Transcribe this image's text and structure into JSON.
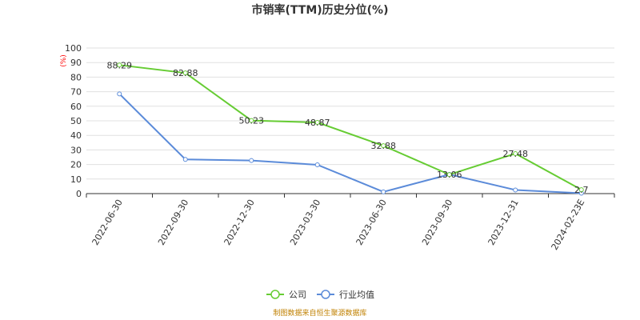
{
  "chart_data": {
    "type": "line",
    "title": "市销率(TTM)历史分位(%)",
    "ylabel": "(%)",
    "categories": [
      "2022-06-30",
      "2022-09-30",
      "2022-12-30",
      "2023-03-30",
      "2023-06-30",
      "2023-09-30",
      "2023-12-31",
      "2024-02-23E"
    ],
    "ylim": [
      0,
      100
    ],
    "yticks": [
      0,
      10,
      20,
      30,
      40,
      50,
      60,
      70,
      80,
      90,
      100
    ],
    "grid": true,
    "legend_position": "bottom",
    "series": [
      {
        "name": "公司",
        "color": "#66cc33",
        "values": [
          88.29,
          82.88,
          50.23,
          48.87,
          32.88,
          13.06,
          27.48,
          2.7
        ],
        "labels": [
          "88.29",
          "82.88",
          "50.23",
          "48.87",
          "32.88",
          "13.06",
          "27.48",
          "2.7"
        ]
      },
      {
        "name": "行业均值",
        "color": "#5b8bd9",
        "values": [
          68.5,
          23.5,
          22.7,
          19.8,
          1.2,
          13.2,
          2.5,
          0.3
        ]
      }
    ]
  },
  "footer": {
    "source": "制图数据来自恒生聚源数据库"
  }
}
